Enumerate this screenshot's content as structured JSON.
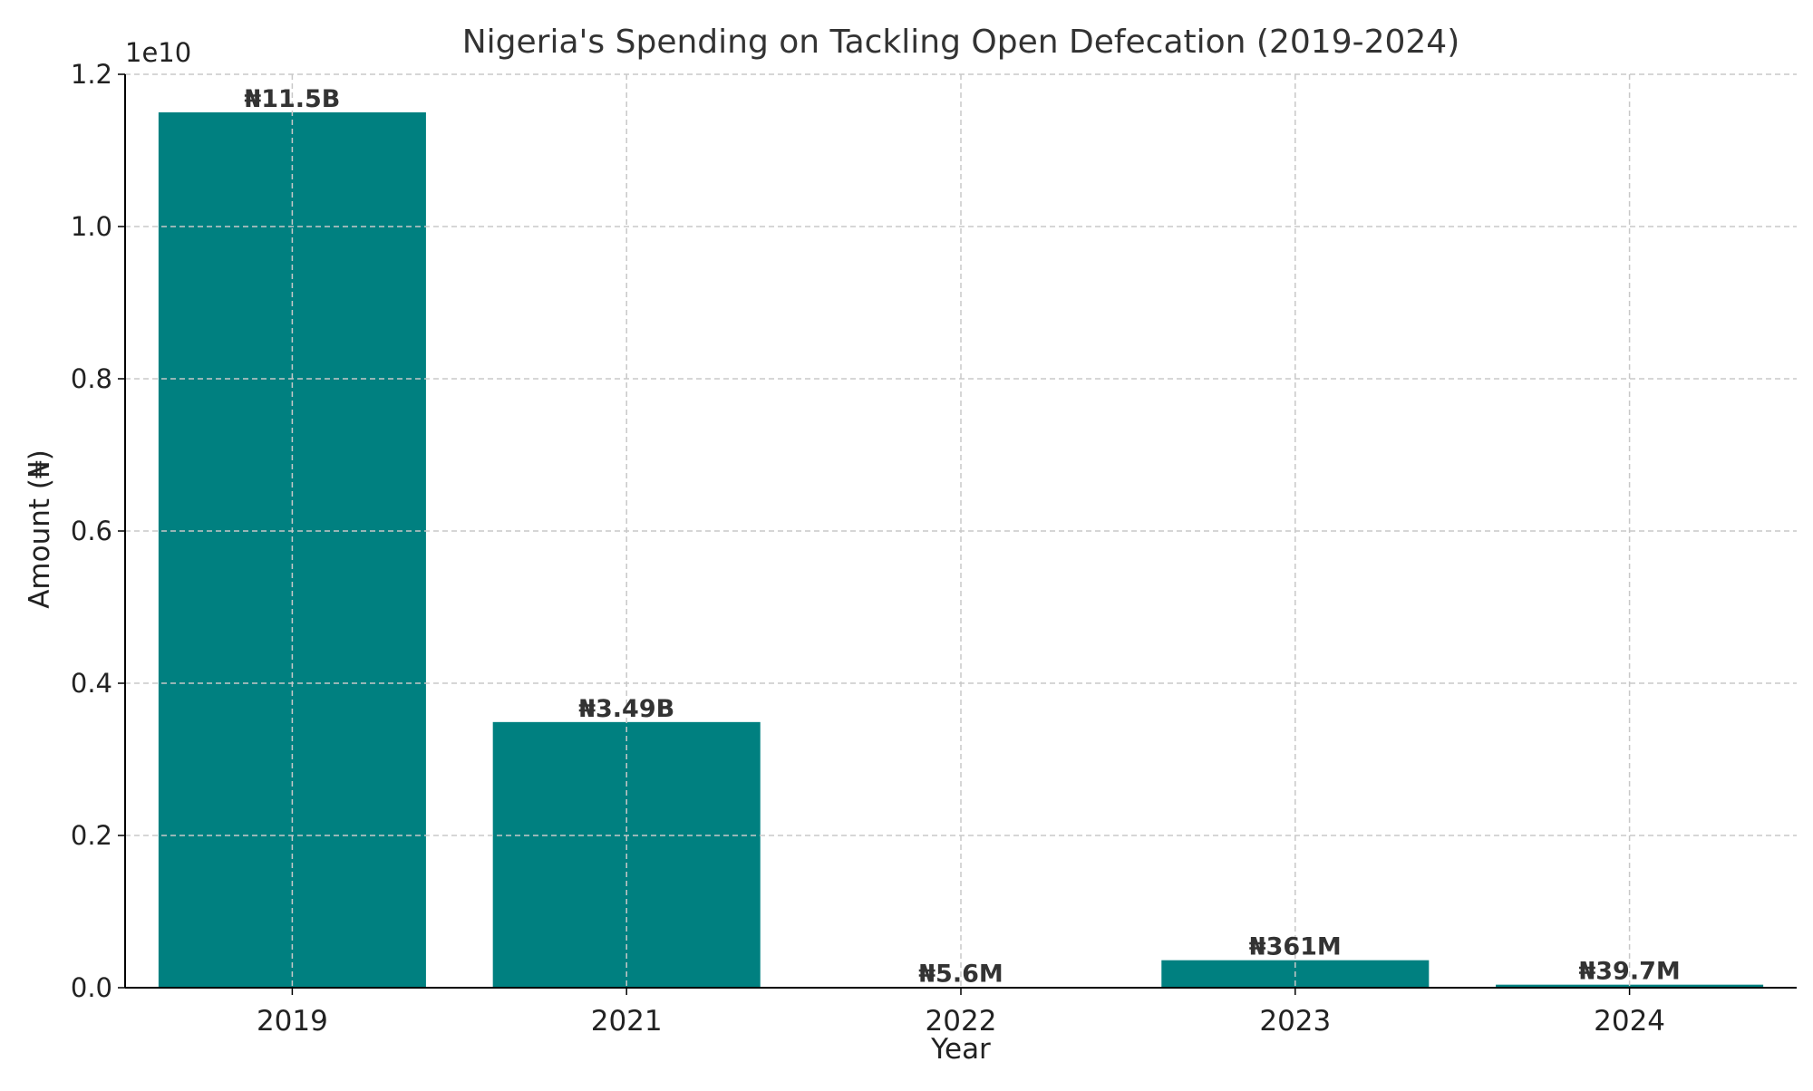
{
  "chart_data": {
    "type": "bar",
    "title": "Nigeria's Spending on Tackling Open Defecation (2019-2024)",
    "xlabel": "Year",
    "ylabel": "Amount (₦)",
    "y_scale_label": "1e10",
    "y_scale": 10000000000,
    "ylim": [
      0,
      12000000000
    ],
    "y_ticks": [
      0,
      2000000000,
      4000000000,
      6000000000,
      8000000000,
      10000000000,
      12000000000
    ],
    "y_tick_labels": [
      "0.0",
      "0.2",
      "0.4",
      "0.6",
      "0.8",
      "1.0",
      "1.2"
    ],
    "categories": [
      "2019",
      "2021",
      "2022",
      "2023",
      "2024"
    ],
    "values": [
      11500000000,
      3490000000,
      5600000,
      361000000,
      39700000
    ],
    "data_labels": [
      "₦11.5B",
      "₦3.49B",
      "₦5.6M",
      "₦361M",
      "₦39.7M"
    ],
    "grid": true,
    "bar_color": "#008080",
    "grid_color": "#c8c8c8",
    "text_color": "#333333"
  }
}
